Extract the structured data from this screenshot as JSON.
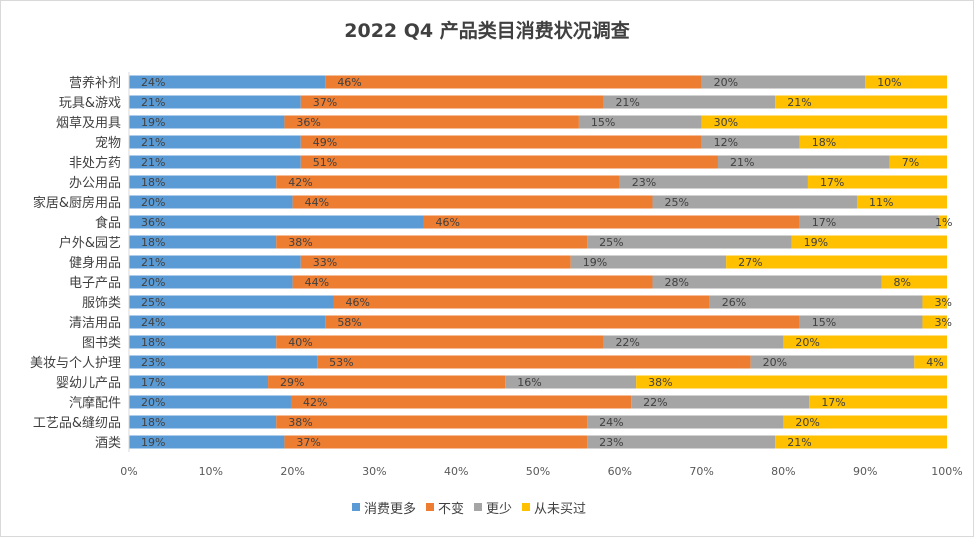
{
  "chart_data": {
    "type": "bar",
    "orientation": "horizontal",
    "stacked": "percent",
    "title": "2022 Q4 产品类目消费状况调查",
    "xlabel": "",
    "ylabel": "",
    "xlim": [
      0,
      100
    ],
    "x_ticks": [
      "0%",
      "10%",
      "20%",
      "30%",
      "40%",
      "50%",
      "60%",
      "70%",
      "80%",
      "90%",
      "100%"
    ],
    "legend_position": "bottom",
    "grid": false,
    "categories": [
      "营养补剂",
      "玩具&游戏",
      "烟草及用具",
      "宠物",
      "非处方药",
      "办公用品",
      "家居&厨房用品",
      "食品",
      "户外&园艺",
      "健身用品",
      "电子产品",
      "服饰类",
      "清洁用品",
      "图书类",
      "美妆与个人护理",
      "婴幼儿产品",
      "汽摩配件",
      "工艺品&缝纫品",
      "酒类"
    ],
    "series": [
      {
        "name": "消费更多",
        "color": "#5b9bd5",
        "values": [
          24,
          21,
          19,
          21,
          21,
          18,
          20,
          36,
          18,
          21,
          20,
          25,
          24,
          18,
          23,
          17,
          20,
          18,
          19
        ]
      },
      {
        "name": "不变",
        "color": "#ed7d31",
        "values": [
          46,
          37,
          36,
          49,
          51,
          42,
          44,
          46,
          38,
          33,
          44,
          46,
          58,
          40,
          53,
          29,
          42,
          38,
          37
        ]
      },
      {
        "name": "更少",
        "color": "#a5a5a5",
        "values": [
          20,
          21,
          15,
          12,
          21,
          23,
          25,
          17,
          25,
          19,
          28,
          26,
          15,
          22,
          20,
          16,
          22,
          24,
          23
        ]
      },
      {
        "name": "从未买过",
        "color": "#ffc000",
        "values": [
          10,
          21,
          30,
          18,
          7,
          17,
          11,
          1,
          19,
          27,
          8,
          3,
          3,
          20,
          4,
          38,
          17,
          20,
          21
        ]
      }
    ]
  }
}
